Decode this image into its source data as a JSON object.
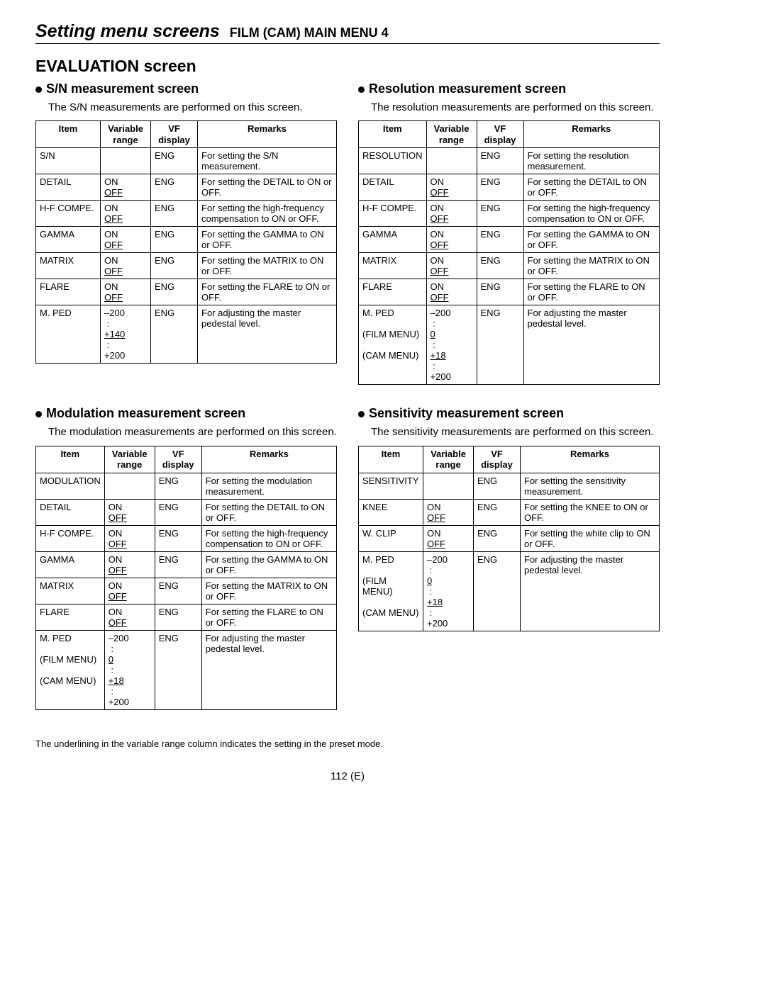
{
  "header": {
    "title_main": "Setting menu screens",
    "title_sub": "FILM (CAM) MAIN MENU 4"
  },
  "section_title": "EVALUATION screen",
  "footnote": "The underlining in the variable range column indicates the setting in the preset mode.",
  "page_number": "112 (E)",
  "table_headers": {
    "item": "Item",
    "range_l1": "Variable",
    "range_l2": "range",
    "vf_l1": "VF",
    "vf_l2": "display",
    "remarks": "Remarks"
  },
  "sn": {
    "title": "S/N measurement screen",
    "desc": "The S/N measurements are performed on this screen.",
    "rows": [
      {
        "item_html": "S/N",
        "range_html": "",
        "vf": "ENG",
        "remarks": "For setting the S/N measurement."
      },
      {
        "item_html": "DETAIL",
        "range_html": "ON<br><span class='u'>OFF</span>",
        "vf": "ENG",
        "remarks": "For setting the DETAIL to ON or OFF."
      },
      {
        "item_html": "H-F COMPE.",
        "range_html": "ON<br><span class='u'>OFF</span>",
        "vf": "ENG",
        "remarks": "For setting the high-frequency compensation to ON or OFF."
      },
      {
        "item_html": "GAMMA",
        "range_html": "ON<br><span class='u'>OFF</span>",
        "vf": "ENG",
        "remarks": "For setting the GAMMA to ON or OFF."
      },
      {
        "item_html": "MATRIX",
        "range_html": "ON<br><span class='u'>OFF</span>",
        "vf": "ENG",
        "remarks": "For setting the MATRIX to ON or OFF."
      },
      {
        "item_html": "FLARE",
        "range_html": "ON<br><span class='u'>OFF</span>",
        "vf": "ENG",
        "remarks": "For setting the FLARE to ON or OFF."
      },
      {
        "item_html": "M. PED",
        "range_html": "–200<br>&nbsp;:<br><span class='u'>+140</span><br>&nbsp;:<br>+200",
        "vf": "ENG",
        "remarks": "For adjusting the master pedestal level."
      }
    ]
  },
  "resolution": {
    "title": "Resolution measurement screen",
    "desc": "The resolution measurements are performed on this screen.",
    "rows": [
      {
        "item_html": "RESOLUTION",
        "range_html": "",
        "vf": "ENG",
        "remarks": "For setting the resolution measurement."
      },
      {
        "item_html": "DETAIL",
        "range_html": "ON<br><span class='u'>OFF</span>",
        "vf": "ENG",
        "remarks": "For setting the DETAIL to ON or OFF."
      },
      {
        "item_html": "H-F COMPE.",
        "range_html": "ON<br><span class='u'>OFF</span>",
        "vf": "ENG",
        "remarks": "For setting the high-frequency compensation to ON or OFF."
      },
      {
        "item_html": "GAMMA",
        "range_html": "ON<br><span class='u'>OFF</span>",
        "vf": "ENG",
        "remarks": "For setting the GAMMA to ON or OFF."
      },
      {
        "item_html": "MATRIX",
        "range_html": "ON<br><span class='u'>OFF</span>",
        "vf": "ENG",
        "remarks": "For setting the MATRIX to ON or OFF."
      },
      {
        "item_html": "FLARE",
        "range_html": "ON<br><span class='u'>OFF</span>",
        "vf": "ENG",
        "remarks": "For setting the FLARE to ON or OFF."
      },
      {
        "item_html": "M. PED<br><br>(FILM MENU)<br><br>(CAM MENU)",
        "range_html": "–200<br>&nbsp;:<br><span class='u'>0</span><br>&nbsp;:<br><span class='u'>+18</span><br>&nbsp;:<br>+200",
        "vf": "ENG",
        "remarks": "For adjusting the master pedestal level."
      }
    ]
  },
  "modulation": {
    "title": "Modulation measurement screen",
    "desc": "The modulation measurements are performed on this screen.",
    "rows": [
      {
        "item_html": "MODULATION",
        "range_html": "",
        "vf": "ENG",
        "remarks": "For setting the modulation measurement."
      },
      {
        "item_html": "DETAIL",
        "range_html": "ON<br><span class='u'>OFF</span>",
        "vf": "ENG",
        "remarks": "For setting the DETAIL to ON or OFF."
      },
      {
        "item_html": "H-F COMPE.",
        "range_html": "ON<br><span class='u'>OFF</span>",
        "vf": "ENG",
        "remarks": "For setting the high-frequency compensation to ON or OFF."
      },
      {
        "item_html": "GAMMA",
        "range_html": "ON<br><span class='u'>OFF</span>",
        "vf": "ENG",
        "remarks": "For setting the GAMMA to ON or OFF."
      },
      {
        "item_html": "MATRIX",
        "range_html": "ON<br><span class='u'>OFF</span>",
        "vf": "ENG",
        "remarks": "For setting the MATRIX to ON or OFF."
      },
      {
        "item_html": "FLARE",
        "range_html": "ON<br><span class='u'>OFF</span>",
        "vf": "ENG",
        "remarks": "For setting the FLARE to ON or OFF."
      },
      {
        "item_html": "M. PED<br><br>(FILM MENU)<br><br>(CAM MENU)",
        "range_html": "–200<br>&nbsp;:<br><span class='u'>0</span><br>&nbsp;:<br><span class='u'>+18</span><br>&nbsp;:<br>+200",
        "vf": "ENG",
        "remarks": "For adjusting the master pedestal level."
      }
    ]
  },
  "sensitivity": {
    "title": "Sensitivity measurement screen",
    "desc": "The sensitivity measurements are performed on this screen.",
    "rows": [
      {
        "item_html": "SENSITIVITY",
        "range_html": "",
        "vf": "ENG",
        "remarks": "For setting the sensitivity measurement."
      },
      {
        "item_html": "KNEE",
        "range_html": "ON<br><span class='u'>OFF</span>",
        "vf": "ENG",
        "remarks": "For setting the KNEE to ON or OFF."
      },
      {
        "item_html": "W. CLIP",
        "range_html": "ON<br><span class='u'>OFF</span>",
        "vf": "ENG",
        "remarks": "For setting the white clip to ON or OFF."
      },
      {
        "item_html": "M. PED<br><br>(FILM MENU)<br><br>(CAM MENU)",
        "range_html": "–200<br>&nbsp;:<br><span class='u'>0</span><br>&nbsp;:<br><span class='u'>+18</span><br>&nbsp;:<br>+200",
        "vf": "ENG",
        "remarks": "For adjusting the master pedestal level."
      }
    ]
  }
}
